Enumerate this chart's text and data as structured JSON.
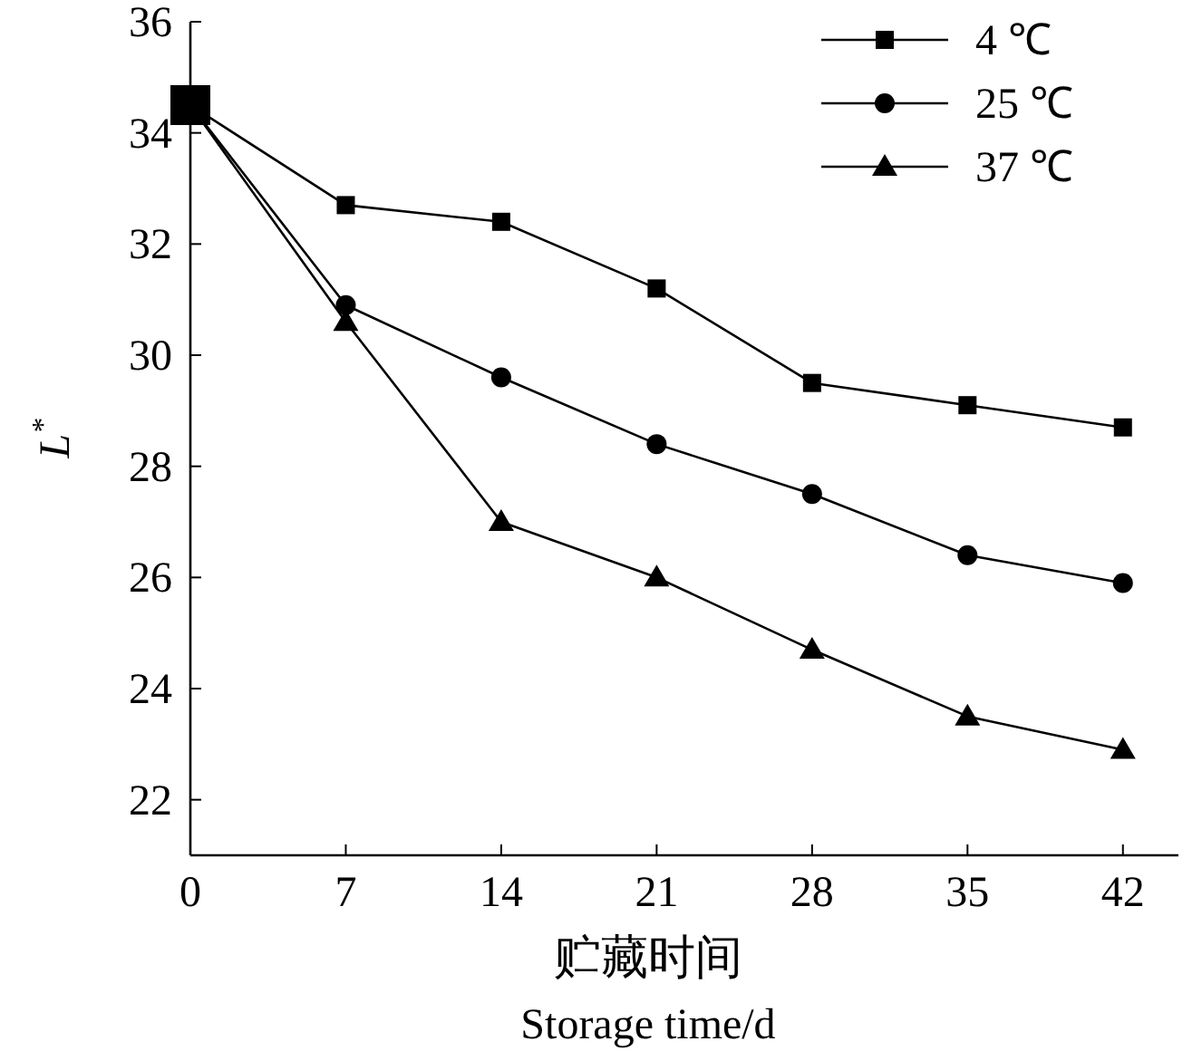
{
  "chart_data": {
    "type": "line",
    "xlabel": "贮藏时间\nStorage time/d",
    "ylabel": "L$^{*}$",
    "x": [
      0,
      7,
      14,
      21,
      28,
      35,
      42
    ],
    "xlim": [
      0,
      44.5
    ],
    "xticks": [
      0,
      7,
      14,
      21,
      28,
      35,
      42
    ],
    "ylim": [
      21,
      36
    ],
    "yticks": [
      22,
      24,
      26,
      28,
      30,
      32,
      34,
      36
    ],
    "legend": "top right",
    "grid": false,
    "line_style": "solid",
    "series": [
      {
        "name": "4 ℃",
        "color": "#000000",
        "marker": "square",
        "values": [
          34.5,
          32.7,
          32.4,
          31.2,
          29.5,
          29.1,
          28.7
        ]
      },
      {
        "name": "25 ℃",
        "color": "#000000",
        "marker": "circle",
        "values": [
          34.5,
          30.9,
          29.6,
          28.4,
          27.5,
          26.4,
          25.9
        ]
      },
      {
        "name": "37 ℃",
        "color": "#000000",
        "marker": "triangle",
        "values": [
          34.5,
          30.6,
          27.0,
          26.0,
          24.7,
          23.5,
          22.9
        ]
      }
    ]
  }
}
